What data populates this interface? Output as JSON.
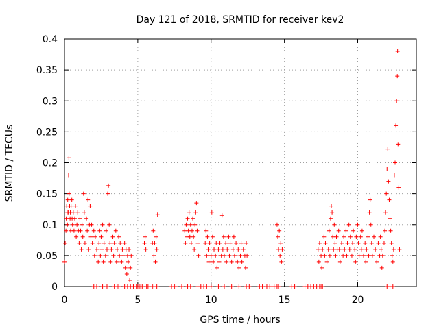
{
  "chart_data": {
    "type": "scatter",
    "title": "Day 121 of 2018, SRMTID for receiver kev2",
    "xlabel": "GPS time / hours",
    "ylabel": "SRMTID / TECUs",
    "xlim": [
      0,
      24
    ],
    "ylim": [
      0,
      0.4
    ],
    "xticks": [
      0,
      5,
      10,
      15,
      20
    ],
    "xtick_labels": [
      "0",
      "5",
      "10",
      "15",
      "20"
    ],
    "yticks": [
      0,
      0.05,
      0.1,
      0.15,
      0.2,
      0.25,
      0.3,
      0.35,
      0.4
    ],
    "ytick_labels": [
      "0",
      "0.05",
      "0.1",
      "0.15",
      "0.2",
      "0.25",
      "0.3",
      "0.35",
      "0.4"
    ],
    "grid": true,
    "marker": "plus",
    "color": "#ff0000",
    "series": [
      {
        "name": "SRMTID",
        "points": [
          [
            0.0,
            0.04
          ],
          [
            0.05,
            0.07
          ],
          [
            0.1,
            0.09
          ],
          [
            0.12,
            0.11
          ],
          [
            0.15,
            0.13
          ],
          [
            0.18,
            0.12
          ],
          [
            0.2,
            0.1
          ],
          [
            0.22,
            0.14
          ],
          [
            0.25,
            0.12
          ],
          [
            0.28,
            0.18
          ],
          [
            0.3,
            0.208
          ],
          [
            0.32,
            0.15
          ],
          [
            0.35,
            0.13
          ],
          [
            0.38,
            0.11
          ],
          [
            0.4,
            0.12
          ],
          [
            0.42,
            0.09
          ],
          [
            0.45,
            0.13
          ],
          [
            0.5,
            0.14
          ],
          [
            0.52,
            0.11
          ],
          [
            0.55,
            0.1
          ],
          [
            0.6,
            0.12
          ],
          [
            0.65,
            0.09
          ],
          [
            0.7,
            0.11
          ],
          [
            0.75,
            0.13
          ],
          [
            0.8,
            0.08
          ],
          [
            0.85,
            0.1
          ],
          [
            0.9,
            0.12
          ],
          [
            0.95,
            0.09
          ],
          [
            1.0,
            0.07
          ],
          [
            1.05,
            0.11
          ],
          [
            1.1,
            0.09
          ],
          [
            1.15,
            0.06
          ],
          [
            1.2,
            0.1
          ],
          [
            1.25,
            0.08
          ],
          [
            1.3,
            0.15
          ],
          [
            1.35,
            0.12
          ],
          [
            1.4,
            0.07
          ],
          [
            1.5,
            0.11
          ],
          [
            1.55,
            0.09
          ],
          [
            1.6,
            0.14
          ],
          [
            1.65,
            0.06
          ],
          [
            1.7,
            0.1
          ],
          [
            1.75,
            0.13
          ],
          [
            1.8,
            0.08
          ],
          [
            1.85,
            0.1
          ],
          [
            1.9,
            0.07
          ],
          [
            2.0,
            0.09
          ],
          [
            2.05,
            0.05
          ],
          [
            2.1,
            0.08
          ],
          [
            2.2,
            0.06
          ],
          [
            2.3,
            0.04
          ],
          [
            2.35,
            0.07
          ],
          [
            2.4,
            0.09
          ],
          [
            2.45,
            0.05
          ],
          [
            2.5,
            0.08
          ],
          [
            2.55,
            0.06
          ],
          [
            2.6,
            0.1
          ],
          [
            2.65,
            0.04
          ],
          [
            2.7,
            0.07
          ],
          [
            2.8,
            0.05
          ],
          [
            2.85,
            0.09
          ],
          [
            2.9,
            0.06
          ],
          [
            2.95,
            0.15
          ],
          [
            3.0,
            0.163
          ],
          [
            3.05,
            0.1
          ],
          [
            3.1,
            0.07
          ],
          [
            3.15,
            0.04
          ],
          [
            3.2,
            0.06
          ],
          [
            3.3,
            0.08
          ],
          [
            3.35,
            0.05
          ],
          [
            3.4,
            0.07
          ],
          [
            3.5,
            0.09
          ],
          [
            3.55,
            0.04
          ],
          [
            3.6,
            0.06
          ],
          [
            3.7,
            0.08
          ],
          [
            3.75,
            0.05
          ],
          [
            3.8,
            0.07
          ],
          [
            3.9,
            0.04
          ],
          [
            3.95,
            0.06
          ],
          [
            4.0,
            0.05
          ],
          [
            4.1,
            0.07
          ],
          [
            4.15,
            0.03
          ],
          [
            4.2,
            0.06
          ],
          [
            4.25,
            0.02
          ],
          [
            4.3,
            0.05
          ],
          [
            4.35,
            0.04
          ],
          [
            4.4,
            0.06
          ],
          [
            4.45,
            0.01
          ],
          [
            4.5,
            0.03
          ],
          [
            4.55,
            0.05
          ],
          [
            5.45,
            0.07
          ],
          [
            5.5,
            0.08
          ],
          [
            5.55,
            0.06
          ],
          [
            6.0,
            0.07
          ],
          [
            6.05,
            0.09
          ],
          [
            6.1,
            0.05
          ],
          [
            6.15,
            0.07
          ],
          [
            6.2,
            0.04
          ],
          [
            6.25,
            0.08
          ],
          [
            6.3,
            0.06
          ],
          [
            6.35,
            0.116
          ],
          [
            8.2,
            0.09
          ],
          [
            8.25,
            0.07
          ],
          [
            8.3,
            0.1
          ],
          [
            8.35,
            0.08
          ],
          [
            8.4,
            0.11
          ],
          [
            8.45,
            0.09
          ],
          [
            8.5,
            0.12
          ],
          [
            8.55,
            0.08
          ],
          [
            8.6,
            0.1
          ],
          [
            8.65,
            0.07
          ],
          [
            8.7,
            0.09
          ],
          [
            8.75,
            0.11
          ],
          [
            8.8,
            0.08
          ],
          [
            8.85,
            0.06
          ],
          [
            8.9,
            0.1
          ],
          [
            8.95,
            0.12
          ],
          [
            9.0,
            0.135
          ],
          [
            9.05,
            0.09
          ],
          [
            9.1,
            0.07
          ],
          [
            9.15,
            0.05
          ],
          [
            9.6,
            0.07
          ],
          [
            9.65,
            0.09
          ],
          [
            9.7,
            0.05
          ],
          [
            9.75,
            0.08
          ],
          [
            9.8,
            0.06
          ],
          [
            9.85,
            0.04
          ],
          [
            9.9,
            0.07
          ],
          [
            10.0,
            0.05
          ],
          [
            10.05,
            0.12
          ],
          [
            10.1,
            0.08
          ],
          [
            10.15,
            0.04
          ],
          [
            10.2,
            0.06
          ],
          [
            10.3,
            0.05
          ],
          [
            10.35,
            0.07
          ],
          [
            10.4,
            0.03
          ],
          [
            10.5,
            0.06
          ],
          [
            10.55,
            0.04
          ],
          [
            10.6,
            0.07
          ],
          [
            10.7,
            0.05
          ],
          [
            10.75,
            0.115
          ],
          [
            10.8,
            0.06
          ],
          [
            10.85,
            0.08
          ],
          [
            10.9,
            0.05
          ],
          [
            11.0,
            0.07
          ],
          [
            11.05,
            0.04
          ],
          [
            11.1,
            0.06
          ],
          [
            11.2,
            0.08
          ],
          [
            11.25,
            0.05
          ],
          [
            11.3,
            0.07
          ],
          [
            11.4,
            0.04
          ],
          [
            11.5,
            0.06
          ],
          [
            11.55,
            0.08
          ],
          [
            11.6,
            0.05
          ],
          [
            11.7,
            0.07
          ],
          [
            11.8,
            0.04
          ],
          [
            11.85,
            0.06
          ],
          [
            11.9,
            0.03
          ],
          [
            12.0,
            0.05
          ],
          [
            12.05,
            0.07
          ],
          [
            12.1,
            0.04
          ],
          [
            12.2,
            0.06
          ],
          [
            12.3,
            0.05
          ],
          [
            12.35,
            0.03
          ],
          [
            12.4,
            0.07
          ],
          [
            12.45,
            0.05
          ],
          [
            14.5,
            0.1
          ],
          [
            14.55,
            0.08
          ],
          [
            14.6,
            0.06
          ],
          [
            14.65,
            0.09
          ],
          [
            14.7,
            0.05
          ],
          [
            14.75,
            0.07
          ],
          [
            14.8,
            0.04
          ],
          [
            14.85,
            0.06
          ],
          [
            17.3,
            0.06
          ],
          [
            17.35,
            0.04
          ],
          [
            17.4,
            0.07
          ],
          [
            17.5,
            0.05
          ],
          [
            17.55,
            0.03
          ],
          [
            17.6,
            0.06
          ],
          [
            17.7,
            0.08
          ],
          [
            17.75,
            0.05
          ],
          [
            17.8,
            0.07
          ],
          [
            17.9,
            0.04
          ],
          [
            18.0,
            0.06
          ],
          [
            18.05,
            0.09
          ],
          [
            18.1,
            0.05
          ],
          [
            18.15,
            0.11
          ],
          [
            18.2,
            0.13
          ],
          [
            18.25,
            0.12
          ],
          [
            18.3,
            0.08
          ],
          [
            18.35,
            0.06
          ],
          [
            18.4,
            0.1
          ],
          [
            18.45,
            0.07
          ],
          [
            18.5,
            0.05
          ],
          [
            18.55,
            0.08
          ],
          [
            18.6,
            0.06
          ],
          [
            18.7,
            0.09
          ],
          [
            18.75,
            0.06
          ],
          [
            18.8,
            0.04
          ],
          [
            18.9,
            0.07
          ],
          [
            19.0,
            0.05
          ],
          [
            19.05,
            0.08
          ],
          [
            19.1,
            0.06
          ],
          [
            19.2,
            0.09
          ],
          [
            19.25,
            0.05
          ],
          [
            19.3,
            0.07
          ],
          [
            19.4,
            0.1
          ],
          [
            19.45,
            0.06
          ],
          [
            19.5,
            0.08
          ],
          [
            19.6,
            0.05
          ],
          [
            19.65,
            0.07
          ],
          [
            19.7,
            0.09
          ],
          [
            19.8,
            0.06
          ],
          [
            19.85,
            0.04
          ],
          [
            19.9,
            0.08
          ],
          [
            20.0,
            0.1
          ],
          [
            20.05,
            0.07
          ],
          [
            20.1,
            0.05
          ],
          [
            20.2,
            0.08
          ],
          [
            20.25,
            0.06
          ],
          [
            20.3,
            0.09
          ],
          [
            20.4,
            0.05
          ],
          [
            20.5,
            0.07
          ],
          [
            20.55,
            0.04
          ],
          [
            20.6,
            0.06
          ],
          [
            20.7,
            0.08
          ],
          [
            20.75,
            0.05
          ],
          [
            20.8,
            0.12
          ],
          [
            20.85,
            0.14
          ],
          [
            20.9,
            0.1
          ],
          [
            20.95,
            0.07
          ],
          [
            21.0,
            0.05
          ],
          [
            21.1,
            0.08
          ],
          [
            21.2,
            0.06
          ],
          [
            21.3,
            0.04
          ],
          [
            21.4,
            0.07
          ],
          [
            21.5,
            0.05
          ],
          [
            21.55,
            0.08
          ],
          [
            21.6,
            0.06
          ],
          [
            21.65,
            0.03
          ],
          [
            21.7,
            0.05
          ],
          [
            21.8,
            0.07
          ],
          [
            21.85,
            0.09
          ],
          [
            21.9,
            0.12
          ],
          [
            21.95,
            0.15
          ],
          [
            22.0,
            0.19
          ],
          [
            22.05,
            0.222
          ],
          [
            22.1,
            0.17
          ],
          [
            22.15,
            0.14
          ],
          [
            22.2,
            0.11
          ],
          [
            22.25,
            0.09
          ],
          [
            22.3,
            0.07
          ],
          [
            22.35,
            0.05
          ],
          [
            22.4,
            0.04
          ],
          [
            22.45,
            0.06
          ],
          [
            22.5,
            0.18
          ],
          [
            22.55,
            0.2
          ],
          [
            22.6,
            0.26
          ],
          [
            22.65,
            0.3
          ],
          [
            22.7,
            0.34
          ],
          [
            22.72,
            0.38
          ],
          [
            22.75,
            0.23
          ],
          [
            22.8,
            0.16
          ],
          [
            22.85,
            0.06
          ]
        ],
        "zero_points": [
          2.0,
          2.2,
          2.6,
          2.9,
          3.4,
          3.6,
          3.7,
          4.1,
          4.3,
          4.5,
          4.7,
          4.9,
          5.0,
          5.1,
          5.2,
          5.3,
          5.6,
          5.7,
          6.0,
          6.1,
          6.3,
          7.3,
          7.5,
          7.6,
          8.0,
          8.4,
          8.6,
          9.1,
          9.3,
          9.5,
          9.7,
          10.0,
          10.5,
          10.9,
          11.4,
          11.9,
          12.4,
          12.6,
          13.3,
          13.5,
          13.8,
          14.0,
          14.3,
          14.5,
          14.6,
          15.5,
          15.7,
          16.4,
          16.6,
          16.8,
          17.0,
          17.2,
          17.4,
          17.5,
          17.6,
          22.0,
          22.2,
          22.4
        ]
      }
    ]
  }
}
